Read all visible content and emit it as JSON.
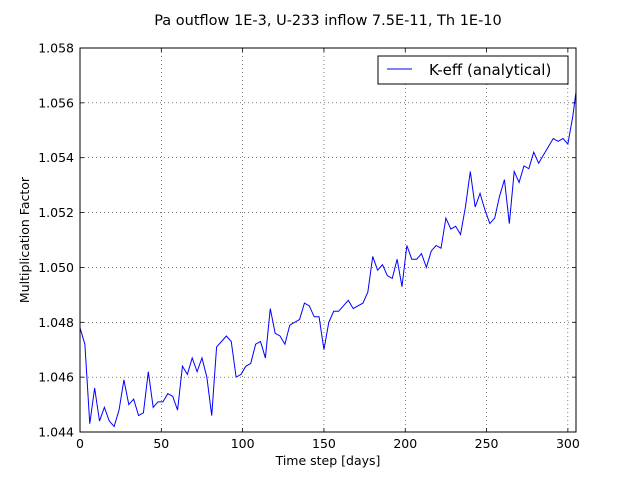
{
  "chart_data": {
    "type": "line",
    "title": "Pa outflow 1E-3, U-233 inflow 7.5E-11, Th 1E-10",
    "xlabel": "Time step [days]",
    "ylabel": "Multiplication Factor",
    "xlim": [
      0,
      305
    ],
    "ylim": [
      1.044,
      1.058
    ],
    "x_ticks": [
      0,
      50,
      100,
      150,
      200,
      250,
      300
    ],
    "x_tick_labels": [
      "0",
      "50",
      "100",
      "150",
      "200",
      "250",
      "300"
    ],
    "y_ticks": [
      1.044,
      1.046,
      1.048,
      1.05,
      1.052,
      1.054,
      1.056,
      1.058
    ],
    "y_tick_labels": [
      "1.044",
      "1.046",
      "1.048",
      "1.050",
      "1.052",
      "1.054",
      "1.056",
      "1.058"
    ],
    "grid": true,
    "legend_position": "top-right",
    "series": [
      {
        "name": "K-eff (analytical)",
        "color": "#0000ff",
        "x": [
          0,
          3,
          6,
          9,
          12,
          15,
          18,
          21,
          24,
          27,
          30,
          33,
          36,
          39,
          42,
          45,
          48,
          51,
          54,
          57,
          60,
          63,
          66,
          69,
          72,
          75,
          78,
          81,
          84,
          87,
          90,
          93,
          96,
          99,
          102,
          105,
          108,
          111,
          114,
          117,
          120,
          123,
          126,
          129,
          132,
          135,
          138,
          141,
          144,
          147,
          150,
          153,
          156,
          159,
          162,
          165,
          168,
          171,
          174,
          177,
          180,
          183,
          186,
          189,
          192,
          195,
          198,
          201,
          204,
          207,
          210,
          213,
          216,
          219,
          222,
          225,
          228,
          231,
          234,
          237,
          240,
          243,
          246,
          249,
          252,
          255,
          258,
          261,
          264,
          267,
          270,
          273,
          276,
          279,
          282,
          285,
          288,
          291,
          294,
          297,
          300,
          303,
          305
        ],
        "values": [
          1.0478,
          1.0472,
          1.0443,
          1.0456,
          1.0444,
          1.0449,
          1.0444,
          1.0442,
          1.0448,
          1.0459,
          1.045,
          1.0452,
          1.0446,
          1.0447,
          1.0462,
          1.0449,
          1.0451,
          1.0451,
          1.0454,
          1.0453,
          1.0448,
          1.0464,
          1.0461,
          1.0467,
          1.0462,
          1.0467,
          1.046,
          1.0446,
          1.0471,
          1.0473,
          1.0475,
          1.0473,
          1.046,
          1.0461,
          1.0464,
          1.0465,
          1.0472,
          1.0473,
          1.0467,
          1.0485,
          1.0476,
          1.0475,
          1.0472,
          1.0479,
          1.048,
          1.0481,
          1.0487,
          1.0486,
          1.0482,
          1.0482,
          1.047,
          1.048,
          1.0484,
          1.0484,
          1.0486,
          1.0488,
          1.0485,
          1.0486,
          1.0487,
          1.0491,
          1.0504,
          1.0499,
          1.0501,
          1.0497,
          1.0496,
          1.0503,
          1.0493,
          1.0508,
          1.0503,
          1.0503,
          1.0505,
          1.05,
          1.0506,
          1.0508,
          1.0507,
          1.0518,
          1.0514,
          1.0515,
          1.0512,
          1.0522,
          1.0535,
          1.0522,
          1.0527,
          1.0521,
          1.0516,
          1.0518,
          1.0526,
          1.0532,
          1.0516,
          1.0535,
          1.0531,
          1.0537,
          1.0536,
          1.0542,
          1.0538,
          1.0541,
          1.0544,
          1.0547,
          1.0546,
          1.0547,
          1.0545,
          1.0555,
          1.0564
        ]
      }
    ]
  }
}
